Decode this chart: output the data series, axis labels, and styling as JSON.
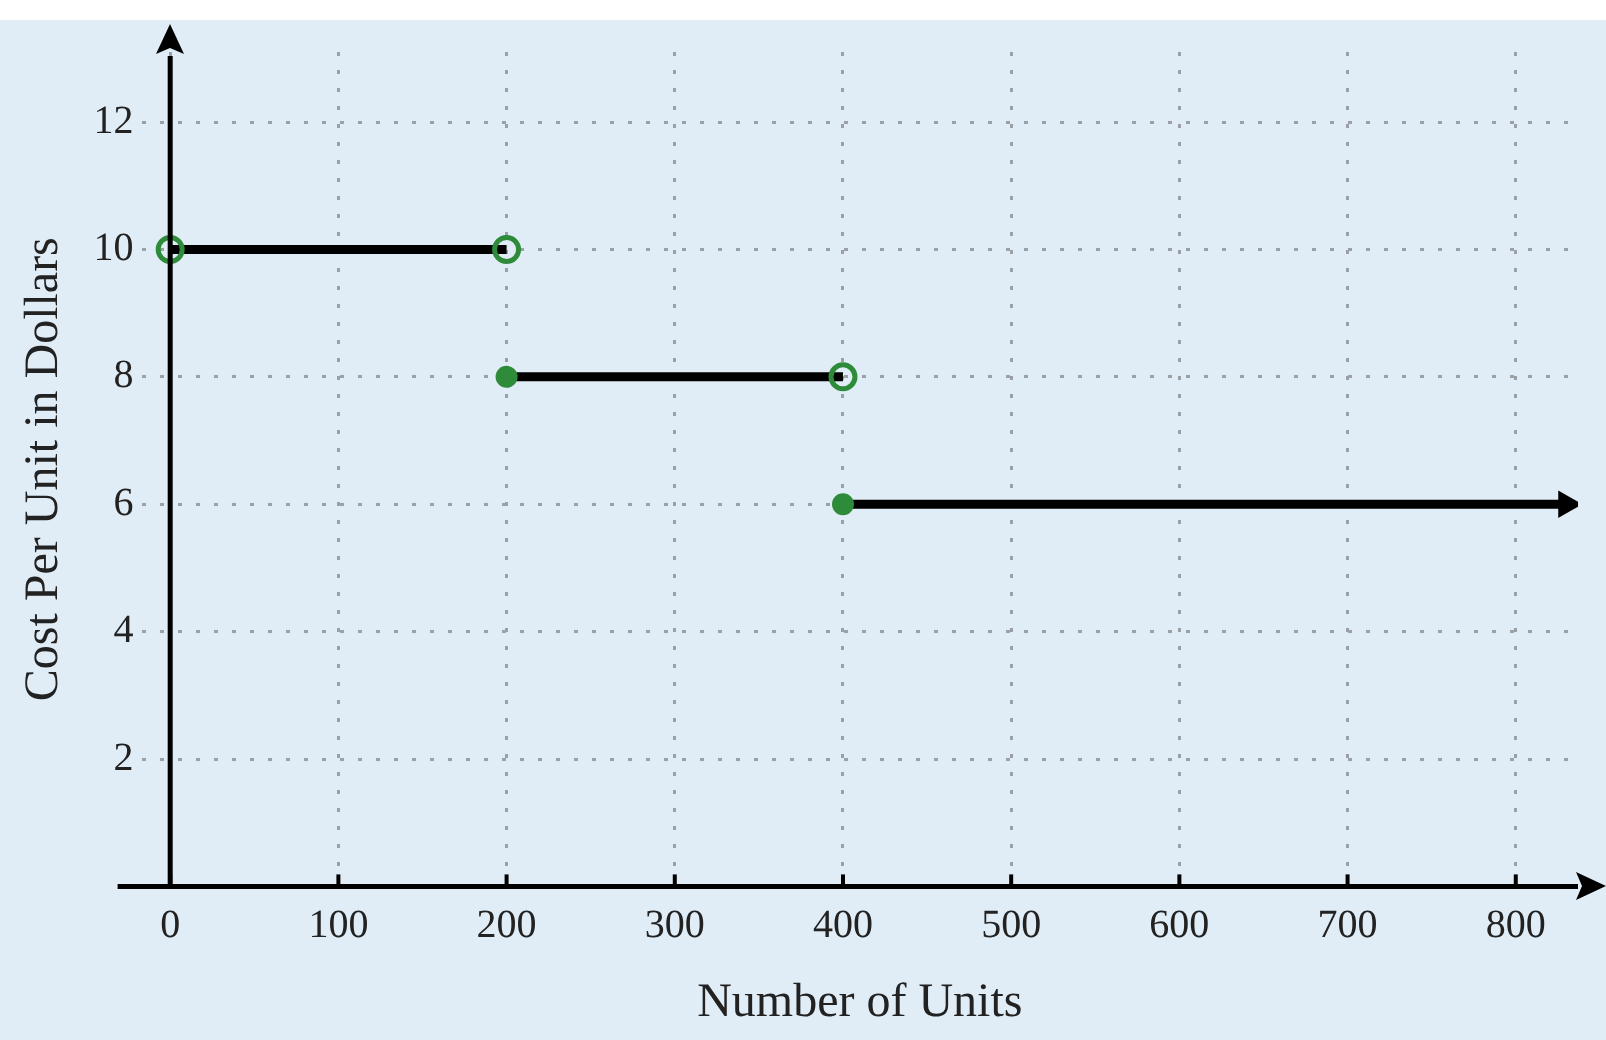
{
  "chart_data": {
    "type": "line",
    "xlabel": "Number of Units",
    "ylabel": "Cost Per Unit in Dollars",
    "series": [
      {
        "color": "#000000",
        "x": [
          0,
          200
        ],
        "values": [
          10,
          10
        ],
        "marker": "none"
      },
      {
        "color": "#000000",
        "x": [
          200,
          400
        ],
        "values": [
          8,
          8
        ],
        "marker": "none"
      },
      {
        "color": "#000000",
        "x": [
          400,
          830
        ],
        "values": [
          6,
          6
        ]
      },
      {
        "type": "scatter",
        "color": "#2e8b3a",
        "x": [
          0,
          200,
          400
        ],
        "values": [
          10,
          10,
          8
        ],
        "marker": "circle"
      },
      {
        "type": "scatter",
        "color": "#2e8b3a",
        "x": [
          200,
          400
        ],
        "values": [
          8,
          6
        ],
        "marker": "circle"
      }
    ],
    "xlim": [
      -17,
      837
    ],
    "ylim": [
      0,
      13.1
    ],
    "xticks": [
      0,
      100,
      200,
      300,
      400,
      500,
      600,
      700,
      800
    ],
    "yticks": [
      2,
      4,
      6,
      8,
      10,
      12
    ],
    "grid": true,
    "legend": false,
    "line_style": "solid"
  }
}
